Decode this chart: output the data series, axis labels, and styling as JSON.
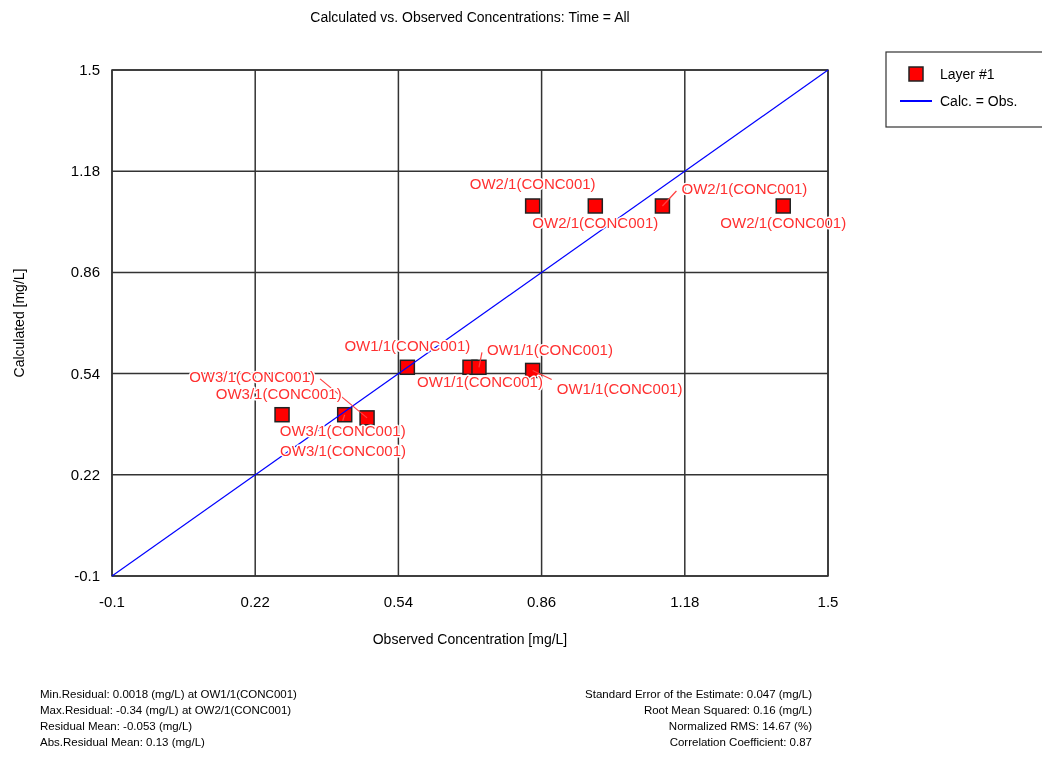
{
  "chart_data": {
    "type": "scatter",
    "title": "Calculated vs. Observed Concentrations: Time = All",
    "xlabel": "Observed Concentration [mg/L]",
    "ylabel": "Calculated [mg/L]",
    "xlim": [
      -0.1,
      1.5
    ],
    "ylim": [
      -0.1,
      1.5
    ],
    "xticks": [
      -0.1,
      0.22,
      0.54,
      0.86,
      1.18,
      1.5
    ],
    "yticks": [
      -0.1,
      0.22,
      0.54,
      0.86,
      1.18,
      1.5
    ],
    "grid": true,
    "legend": "top right",
    "series": [
      {
        "name": "Layer #1",
        "color": "#ff0000",
        "marker": "square",
        "x": [
          0.84,
          0.98,
          1.13,
          1.4,
          0.56,
          0.7,
          0.72,
          0.84,
          0.47,
          0.42,
          0.28
        ],
        "values": [
          1.07,
          1.07,
          1.07,
          1.07,
          0.56,
          0.56,
          0.56,
          0.55,
          0.4,
          0.41,
          0.41
        ]
      },
      {
        "name": "Calc. = Obs.",
        "color": "#0000ff",
        "type": "line",
        "x": [
          -0.1,
          1.5
        ],
        "values": [
          -0.1,
          1.5
        ]
      }
    ],
    "annotations": [
      {
        "text": "OW2/1(CONC001)",
        "x": 0.84,
        "y": 1.07
      },
      {
        "text": "OW2/1(CONC001)",
        "x": 0.98,
        "y": 1.07
      },
      {
        "text": "OW2/1(CONC001)",
        "x": 1.13,
        "y": 1.07
      },
      {
        "text": "OW2/1(CONC001)",
        "x": 1.4,
        "y": 1.07
      },
      {
        "text": "OW1/1(CONC001)",
        "x": 0.56,
        "y": 0.56
      },
      {
        "text": "OW1/1(CONC001)",
        "x": 0.7,
        "y": 0.56
      },
      {
        "text": "OW1/1(CONC001)",
        "x": 0.72,
        "y": 0.56
      },
      {
        "text": "OW1/1(CONC001)",
        "x": 0.84,
        "y": 0.55
      },
      {
        "text": "OW3/1(CONC001)",
        "x": 0.47,
        "y": 0.4
      },
      {
        "text": "OW3/1(CONC001)",
        "x": 0.42,
        "y": 0.41
      },
      {
        "text": "OW3/1(CONC001)",
        "x": 0.42,
        "y": 0.41
      },
      {
        "text": "OW3/1(CONC001)",
        "x": 0.28,
        "y": 0.41
      },
      "Min.Residual: 0.0018 (mg/L) at OW1/1(CONC001)",
      "Max.Residual: -0.34 (mg/L) at OW2/1(CONC001)",
      "Residual Mean: -0.053 (mg/L)",
      "Abs.Residual Mean: 0.13 (mg/L)",
      "Standard Error of the Estimate: 0.047 (mg/L)",
      "Root Mean Squared: 0.16 (mg/L)",
      "Normalized RMS: 14.67 (%)",
      "Correlation Coefficient: 0.87"
    ]
  }
}
